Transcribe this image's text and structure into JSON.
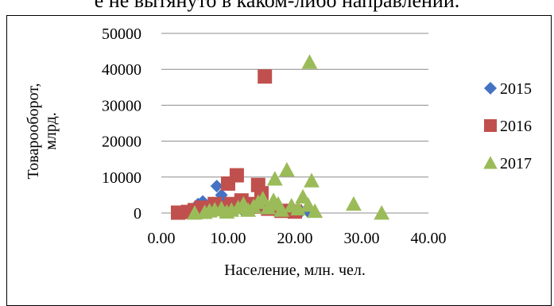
{
  "page": {
    "top_text": "е не вытянуто в каком-либо направлении."
  },
  "chart_data": {
    "type": "scatter",
    "title": "",
    "xlabel": "Население, млн. чел.",
    "ylabel": "Товарооборот, млрд.",
    "ylabel_lines": [
      "Товарооборот,",
      "млрд."
    ],
    "xlim": [
      0,
      40
    ],
    "ylim": [
      0,
      50000
    ],
    "x_ticks": [
      0,
      10,
      20,
      30,
      40
    ],
    "x_tick_labels": [
      "0.00",
      "10.00",
      "20.00",
      "30.00",
      "40.00"
    ],
    "y_ticks": [
      0,
      10000,
      20000,
      30000,
      40000,
      50000
    ],
    "y_tick_labels": [
      "0",
      "10000",
      "20000",
      "30000",
      "40000",
      "50000"
    ],
    "grid": "horizontal",
    "legend_position": "right",
    "series": [
      {
        "name": "2015",
        "marker": "diamond",
        "color": "#4472C4",
        "points": [
          [
            5.5,
            2500
          ],
          [
            6.2,
            3200
          ],
          [
            7.5,
            2000
          ],
          [
            8.3,
            7500
          ],
          [
            9.0,
            5000
          ],
          [
            9.6,
            3000
          ],
          [
            10.2,
            1500
          ],
          [
            11.0,
            2500
          ],
          [
            12.0,
            1000
          ],
          [
            13.0,
            2000
          ],
          [
            14.0,
            1500
          ],
          [
            15.5,
            900
          ],
          [
            17.0,
            700
          ],
          [
            19.0,
            600
          ],
          [
            21.0,
            500
          ],
          [
            22.0,
            300
          ]
        ]
      },
      {
        "name": "2016",
        "marker": "square",
        "color": "#C0504D",
        "points": [
          [
            2.5,
            100
          ],
          [
            4.0,
            300
          ],
          [
            5.0,
            800
          ],
          [
            6.0,
            1500
          ],
          [
            7.0,
            800
          ],
          [
            8.0,
            2500
          ],
          [
            9.0,
            1500
          ],
          [
            10.0,
            8200
          ],
          [
            10.5,
            2500
          ],
          [
            11.3,
            10500
          ],
          [
            12.0,
            3500
          ],
          [
            13.0,
            2500
          ],
          [
            13.8,
            1800
          ],
          [
            14.5,
            7800
          ],
          [
            15.0,
            5500
          ],
          [
            16.0,
            1200
          ],
          [
            15.5,
            38000
          ],
          [
            18.0,
            600
          ],
          [
            20.0,
            400
          ]
        ]
      },
      {
        "name": "2017",
        "marker": "triangle",
        "color": "#9BBB59",
        "points": [
          [
            5.0,
            0
          ],
          [
            6.5,
            200
          ],
          [
            7.2,
            600
          ],
          [
            8.0,
            900
          ],
          [
            9.0,
            1200
          ],
          [
            9.8,
            300
          ],
          [
            10.5,
            800
          ],
          [
            11.5,
            1500
          ],
          [
            12.3,
            2500
          ],
          [
            13.0,
            800
          ],
          [
            13.8,
            1800
          ],
          [
            14.5,
            3000
          ],
          [
            15.2,
            4000
          ],
          [
            16.0,
            1500
          ],
          [
            16.8,
            3500
          ],
          [
            17.5,
            2500
          ],
          [
            17.0,
            9500
          ],
          [
            18.0,
            800
          ],
          [
            18.8,
            12000
          ],
          [
            19.5,
            2000
          ],
          [
            20.5,
            1200
          ],
          [
            21.2,
            4500
          ],
          [
            22.0,
            2200
          ],
          [
            22.5,
            9000
          ],
          [
            23.0,
            500
          ],
          [
            22.2,
            42000
          ],
          [
            28.8,
            2500
          ],
          [
            33.0,
            0
          ]
        ]
      }
    ]
  }
}
